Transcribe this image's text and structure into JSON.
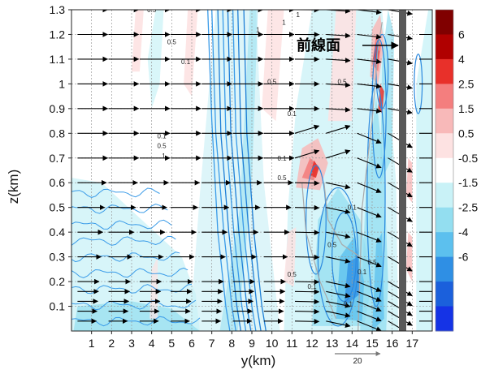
{
  "chart_data": {
    "type": "heatmap",
    "title": "",
    "xlabel": "y(km)",
    "ylabel": "z(km)",
    "xlim": [
      0,
      18
    ],
    "ylim": [
      0,
      1.3
    ],
    "x_ticks": [
      "1",
      "2",
      "3",
      "4",
      "5",
      "6",
      "7",
      "8",
      "9",
      "10",
      "11",
      "12",
      "13",
      "14",
      "15",
      "16",
      "17"
    ],
    "y_ticks": [
      "0.1",
      "0.2",
      "0.3",
      "0.4",
      "0.5",
      "0.6",
      "0.7",
      "0.8",
      "0.9",
      "1",
      "1.1",
      "1.2",
      "1.3"
    ],
    "grid": true,
    "colorbar": {
      "placement": "right",
      "ticks": [
        "6",
        "4",
        "2.5",
        "1.5",
        "0.5",
        "-0.5",
        "-1.5",
        "-2.5",
        "-4",
        "-6"
      ],
      "colors": [
        "#800000",
        "#b00000",
        "#e8302a",
        "#f47e7e",
        "#f8b9b9",
        "#fde2e2",
        "#ffffff",
        "#c9f2f7",
        "#93def0",
        "#5cc0ee",
        "#2f8fe4",
        "#1b60dc",
        "#1533e6"
      ]
    },
    "annotation": {
      "text": "前線面",
      "x": 16.2,
      "y": 1.13
    },
    "front_x": 16.5,
    "reference_vector": {
      "label": "20"
    },
    "contour_labels": [
      {
        "text": "0.5",
        "x": 4.0,
        "y": 1.29
      },
      {
        "text": "0.5",
        "x": 5.0,
        "y": 1.16
      },
      {
        "text": "0.1",
        "x": 5.7,
        "y": 1.08
      },
      {
        "text": "1",
        "x": 11.3,
        "y": 1.27
      },
      {
        "text": "1",
        "x": 10.6,
        "y": 1.24
      },
      {
        "text": "1",
        "x": 9.3,
        "y": 1.21
      },
      {
        "text": "0.5",
        "x": 10.0,
        "y": 1.0
      },
      {
        "text": "0.1",
        "x": 11.0,
        "y": 0.87
      },
      {
        "text": "0.5",
        "x": 13.5,
        "y": 1.0
      },
      {
        "text": "0.1",
        "x": 4.5,
        "y": 0.78
      },
      {
        "text": "0.5",
        "x": 4.5,
        "y": 0.74
      },
      {
        "text": "1",
        "x": 4.6,
        "y": 0.7
      },
      {
        "text": "0.1",
        "x": 10.5,
        "y": 0.69
      },
      {
        "text": "0.5",
        "x": 10.5,
        "y": 0.61
      },
      {
        "text": "0.1",
        "x": 14.0,
        "y": 0.49
      },
      {
        "text": "0.5",
        "x": 13.0,
        "y": 0.34
      },
      {
        "text": "0.1",
        "x": 14.5,
        "y": 0.23
      },
      {
        "text": "0.5",
        "x": 15.0,
        "y": 0.27
      },
      {
        "text": "0.5",
        "x": 11.0,
        "y": 0.22
      },
      {
        "text": "0.1",
        "x": 12.0,
        "y": 0.17
      },
      {
        "text": "0.1",
        "x": 13.8,
        "y": 0.1
      }
    ]
  }
}
